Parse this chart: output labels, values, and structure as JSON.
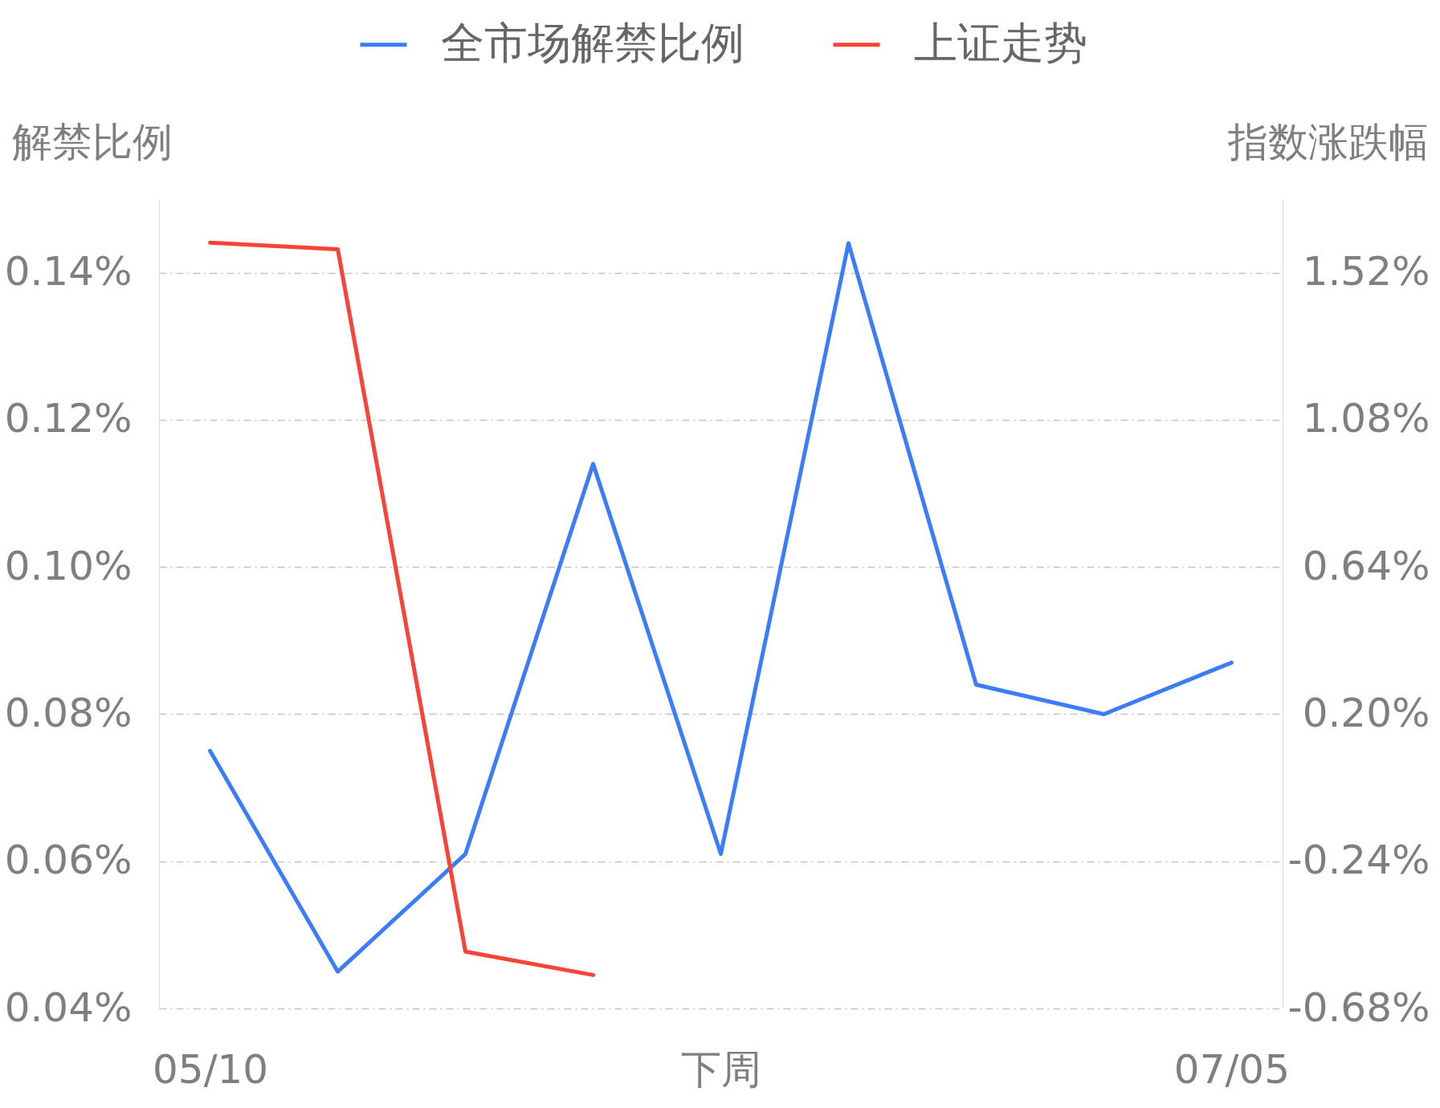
{
  "chart_data": {
    "type": "line",
    "ylabel": "解禁比例",
    "y2label": "指数涨跌幅",
    "categories": [
      "05/10",
      null,
      null,
      null,
      "下周",
      null,
      null,
      null,
      "07/05"
    ],
    "series": [
      {
        "name": "全市场解禁比例",
        "color": "#3b7cf9",
        "values": [
          0.075,
          0.045,
          0.061,
          0.114,
          0.061,
          0.144,
          0.084,
          0.08,
          0.087
        ]
      },
      {
        "name": "上证走势",
        "color": "#fa4338",
        "axis": "y2",
        "values": [
          1.61,
          1.59,
          -0.51,
          -0.58,
          null,
          null,
          null,
          null,
          null
        ]
      }
    ],
    "ylim": [
      0.04,
      0.15
    ],
    "yticks": [
      {
        "value": 0.04,
        "label": "0.04%"
      },
      {
        "value": 0.06,
        "label": "0.06%"
      },
      {
        "value": 0.08,
        "label": "0.08%"
      },
      {
        "value": 0.1,
        "label": "0.10%"
      },
      {
        "value": 0.12,
        "label": "0.12%"
      },
      {
        "value": 0.14,
        "label": "0.14%"
      }
    ],
    "y2lim": [
      -0.68,
      1.74
    ],
    "y2ticks": [
      {
        "value": -0.68,
        "label": "-0.68%"
      },
      {
        "value": -0.24,
        "label": "-0.24%"
      },
      {
        "value": 0.2,
        "label": "0.20%"
      },
      {
        "value": 0.64,
        "label": "0.64%"
      },
      {
        "value": 1.08,
        "label": "1.08%"
      },
      {
        "value": 1.52,
        "label": "1.52%"
      }
    ],
    "grid": "y",
    "legend": "top",
    "line_style": "solid"
  }
}
